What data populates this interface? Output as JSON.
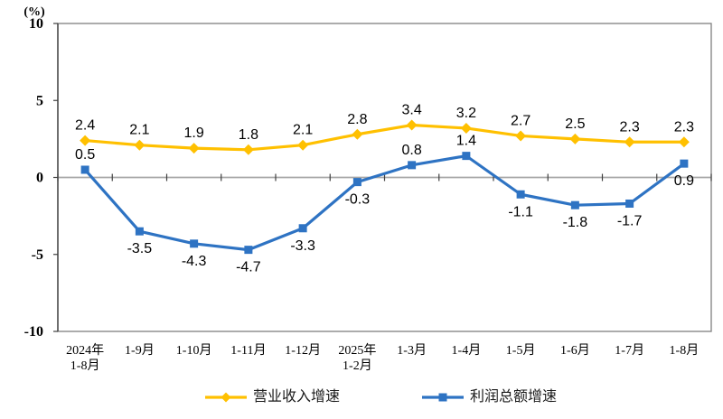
{
  "chart_data": {
    "type": "line",
    "unit_label": "(%)",
    "categories": [
      "2024年\n1-8月",
      "1-9月",
      "1-10月",
      "1-11月",
      "1-12月",
      "2025年\n1-2月",
      "1-3月",
      "1-4月",
      "1-5月",
      "1-6月",
      "1-7月",
      "1-8月"
    ],
    "series": [
      {
        "name": "营业收入增速",
        "color": "#FFC000",
        "marker": "diamond",
        "values": [
          2.4,
          2.1,
          1.9,
          1.8,
          2.1,
          2.8,
          3.4,
          3.2,
          2.7,
          2.5,
          2.3,
          2.3
        ],
        "label_sides": [
          "above",
          "above",
          "above",
          "above",
          "above",
          "above",
          "above",
          "above",
          "above",
          "above",
          "above",
          "above"
        ]
      },
      {
        "name": "利润总额增速",
        "color": "#2E73C3",
        "marker": "square",
        "values": [
          0.5,
          -3.5,
          -4.3,
          -4.7,
          -3.3,
          -0.3,
          0.8,
          1.4,
          -1.1,
          -1.8,
          -1.7,
          0.9
        ],
        "label_sides": [
          "above",
          "below",
          "below",
          "below",
          "below",
          "below",
          "above",
          "above",
          "below",
          "below",
          "below",
          "below"
        ]
      }
    ],
    "ylim": [
      -10,
      10
    ],
    "yticks": [
      10,
      5,
      0,
      -5,
      -10
    ],
    "grid": "zero-line-only",
    "legend_position": "bottom",
    "axis_colors": {
      "border": "#7F7F7F",
      "axis": "#404040",
      "zero_line": "#A6A6A6",
      "label_text": "#000000"
    }
  }
}
